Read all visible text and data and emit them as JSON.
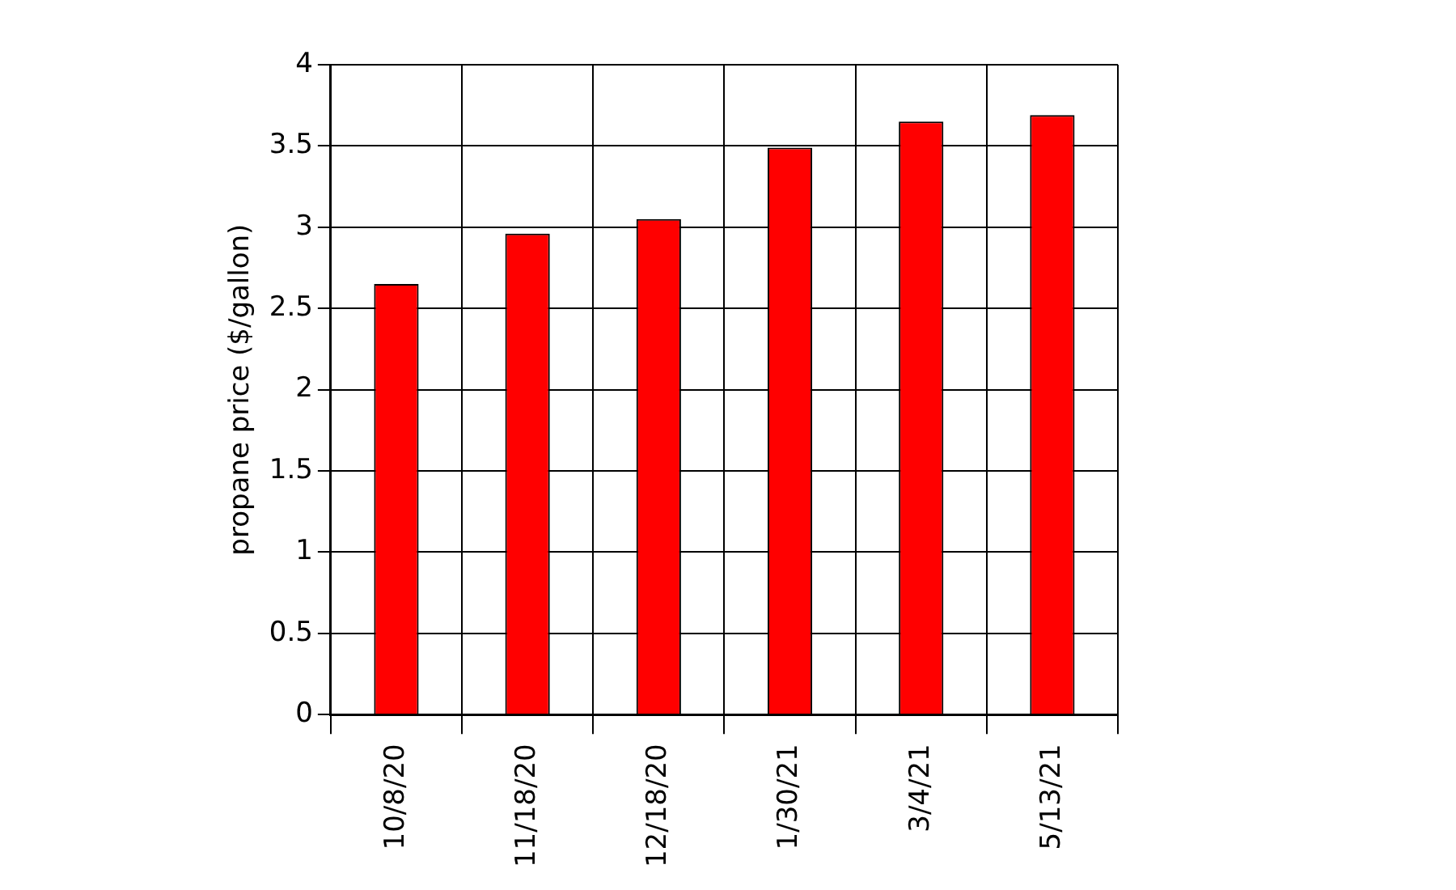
{
  "chart_data": {
    "type": "bar",
    "ylabel": "propane price ($/gallon)",
    "categories": [
      "10/8/20",
      "11/18/20",
      "12/18/20",
      "1/30/21",
      "3/4/21",
      "5/13/21"
    ],
    "values": [
      2.65,
      2.96,
      3.05,
      3.49,
      3.65,
      3.69
    ],
    "color": "#ff0000",
    "ylim": [
      0,
      4
    ],
    "yticks": [
      0,
      0.5,
      1,
      1.5,
      2,
      2.5,
      3,
      3.5,
      4
    ],
    "grid": true,
    "legend": false
  }
}
